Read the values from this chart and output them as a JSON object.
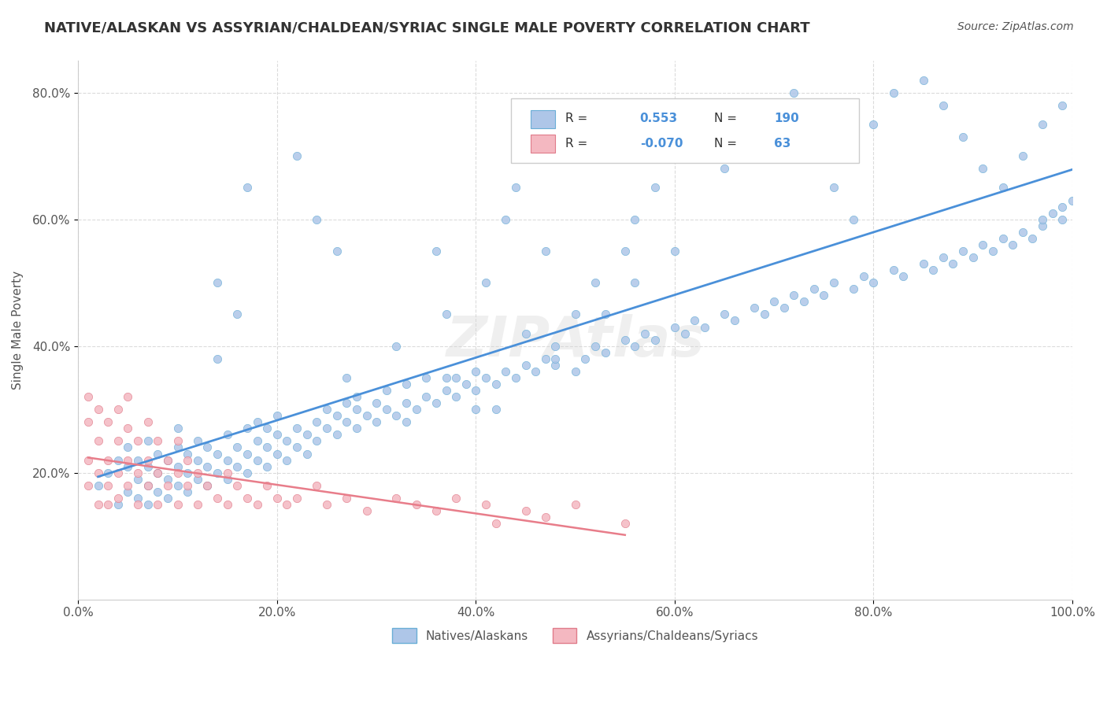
{
  "title": "NATIVE/ALASKAN VS ASSYRIAN/CHALDEAN/SYRIAC SINGLE MALE POVERTY CORRELATION CHART",
  "source": "Source: ZipAtlas.com",
  "xlabel": "",
  "ylabel": "Single Male Poverty",
  "xlim": [
    0.0,
    1.0
  ],
  "ylim": [
    0.0,
    0.85
  ],
  "x_tick_labels": [
    "0.0%",
    "20.0%",
    "40.0%",
    "60.0%",
    "80.0%",
    "100.0%"
  ],
  "x_ticks": [
    0.0,
    0.2,
    0.4,
    0.6,
    0.8,
    1.0
  ],
  "y_tick_labels": [
    "20.0%",
    "40.0%",
    "60.0%",
    "80.0%"
  ],
  "y_ticks": [
    0.2,
    0.4,
    0.6,
    0.8
  ],
  "R_native": 0.553,
  "N_native": 190,
  "R_assyrian": -0.07,
  "N_assyrian": 63,
  "native_color": "#aec6e8",
  "native_edge": "#6aaed6",
  "assyrian_color": "#f4b8c1",
  "assyrian_edge": "#e07b8a",
  "native_line_color": "#4a90d9",
  "assyrian_line_color": "#e87d8a",
  "background_color": "#ffffff",
  "grid_color": "#cccccc",
  "title_color": "#333333",
  "legend_text_color": "#4a90d9",
  "watermark": "ZIPAtlas",
  "native_x": [
    0.02,
    0.03,
    0.04,
    0.04,
    0.05,
    0.05,
    0.05,
    0.06,
    0.06,
    0.06,
    0.07,
    0.07,
    0.07,
    0.07,
    0.08,
    0.08,
    0.08,
    0.09,
    0.09,
    0.09,
    0.1,
    0.1,
    0.1,
    0.1,
    0.11,
    0.11,
    0.11,
    0.12,
    0.12,
    0.12,
    0.13,
    0.13,
    0.13,
    0.14,
    0.14,
    0.15,
    0.15,
    0.15,
    0.16,
    0.16,
    0.17,
    0.17,
    0.17,
    0.18,
    0.18,
    0.18,
    0.19,
    0.19,
    0.19,
    0.2,
    0.2,
    0.2,
    0.21,
    0.21,
    0.22,
    0.22,
    0.23,
    0.23,
    0.24,
    0.24,
    0.25,
    0.25,
    0.26,
    0.26,
    0.27,
    0.27,
    0.28,
    0.28,
    0.29,
    0.3,
    0.3,
    0.31,
    0.31,
    0.32,
    0.33,
    0.33,
    0.34,
    0.35,
    0.35,
    0.36,
    0.37,
    0.38,
    0.38,
    0.39,
    0.4,
    0.4,
    0.41,
    0.42,
    0.43,
    0.44,
    0.45,
    0.46,
    0.47,
    0.48,
    0.5,
    0.51,
    0.52,
    0.53,
    0.55,
    0.56,
    0.57,
    0.58,
    0.6,
    0.61,
    0.62,
    0.63,
    0.65,
    0.66,
    0.68,
    0.69,
    0.7,
    0.71,
    0.72,
    0.73,
    0.74,
    0.75,
    0.76,
    0.78,
    0.79,
    0.8,
    0.82,
    0.83,
    0.85,
    0.86,
    0.87,
    0.88,
    0.89,
    0.9,
    0.91,
    0.92,
    0.93,
    0.94,
    0.95,
    0.96,
    0.97,
    0.97,
    0.98,
    0.99,
    0.99,
    1.0,
    0.14,
    0.16,
    0.17,
    0.22,
    0.24,
    0.26,
    0.27,
    0.32,
    0.36,
    0.37,
    0.41,
    0.42,
    0.43,
    0.44,
    0.47,
    0.48,
    0.5,
    0.52,
    0.55,
    0.56,
    0.58,
    0.6,
    0.62,
    0.65,
    0.68,
    0.7,
    0.72,
    0.74,
    0.76,
    0.78,
    0.8,
    0.82,
    0.85,
    0.87,
    0.89,
    0.91,
    0.93,
    0.95,
    0.97,
    0.99,
    0.14,
    0.28,
    0.33,
    0.37,
    0.4,
    0.45,
    0.48,
    0.53,
    0.56,
    0.6
  ],
  "native_y": [
    0.18,
    0.2,
    0.22,
    0.15,
    0.17,
    0.21,
    0.24,
    0.16,
    0.19,
    0.22,
    0.15,
    0.18,
    0.21,
    0.25,
    0.17,
    0.2,
    0.23,
    0.16,
    0.19,
    0.22,
    0.18,
    0.21,
    0.24,
    0.27,
    0.17,
    0.2,
    0.23,
    0.19,
    0.22,
    0.25,
    0.18,
    0.21,
    0.24,
    0.2,
    0.23,
    0.19,
    0.22,
    0.26,
    0.21,
    0.24,
    0.2,
    0.23,
    0.27,
    0.22,
    0.25,
    0.28,
    0.21,
    0.24,
    0.27,
    0.23,
    0.26,
    0.29,
    0.22,
    0.25,
    0.24,
    0.27,
    0.23,
    0.26,
    0.25,
    0.28,
    0.27,
    0.3,
    0.26,
    0.29,
    0.28,
    0.31,
    0.27,
    0.3,
    0.29,
    0.28,
    0.31,
    0.3,
    0.33,
    0.29,
    0.31,
    0.34,
    0.3,
    0.32,
    0.35,
    0.31,
    0.33,
    0.32,
    0.35,
    0.34,
    0.33,
    0.36,
    0.35,
    0.34,
    0.36,
    0.35,
    0.37,
    0.36,
    0.38,
    0.37,
    0.36,
    0.38,
    0.4,
    0.39,
    0.41,
    0.4,
    0.42,
    0.41,
    0.43,
    0.42,
    0.44,
    0.43,
    0.45,
    0.44,
    0.46,
    0.45,
    0.47,
    0.46,
    0.48,
    0.47,
    0.49,
    0.48,
    0.5,
    0.49,
    0.51,
    0.5,
    0.52,
    0.51,
    0.53,
    0.52,
    0.54,
    0.53,
    0.55,
    0.54,
    0.56,
    0.55,
    0.57,
    0.56,
    0.58,
    0.57,
    0.59,
    0.6,
    0.61,
    0.6,
    0.62,
    0.63,
    0.5,
    0.45,
    0.65,
    0.7,
    0.6,
    0.55,
    0.35,
    0.4,
    0.55,
    0.45,
    0.5,
    0.3,
    0.6,
    0.65,
    0.55,
    0.4,
    0.45,
    0.5,
    0.55,
    0.6,
    0.65,
    0.7,
    0.75,
    0.68,
    0.73,
    0.78,
    0.8,
    0.7,
    0.65,
    0.6,
    0.75,
    0.8,
    0.82,
    0.78,
    0.73,
    0.68,
    0.65,
    0.7,
    0.75,
    0.78,
    0.38,
    0.32,
    0.28,
    0.35,
    0.3,
    0.42,
    0.38,
    0.45,
    0.5,
    0.55
  ],
  "assyrian_x": [
    0.01,
    0.01,
    0.01,
    0.01,
    0.02,
    0.02,
    0.02,
    0.02,
    0.03,
    0.03,
    0.03,
    0.03,
    0.04,
    0.04,
    0.04,
    0.04,
    0.05,
    0.05,
    0.05,
    0.05,
    0.06,
    0.06,
    0.06,
    0.07,
    0.07,
    0.07,
    0.08,
    0.08,
    0.08,
    0.09,
    0.09,
    0.1,
    0.1,
    0.1,
    0.11,
    0.11,
    0.12,
    0.12,
    0.13,
    0.14,
    0.15,
    0.15,
    0.16,
    0.17,
    0.18,
    0.19,
    0.2,
    0.21,
    0.22,
    0.24,
    0.25,
    0.27,
    0.29,
    0.32,
    0.34,
    0.36,
    0.38,
    0.41,
    0.42,
    0.45,
    0.47,
    0.5,
    0.55
  ],
  "assyrian_y": [
    0.28,
    0.32,
    0.18,
    0.22,
    0.15,
    0.25,
    0.3,
    0.2,
    0.18,
    0.28,
    0.22,
    0.15,
    0.2,
    0.25,
    0.3,
    0.16,
    0.22,
    0.27,
    0.18,
    0.32,
    0.2,
    0.15,
    0.25,
    0.22,
    0.18,
    0.28,
    0.2,
    0.15,
    0.25,
    0.22,
    0.18,
    0.2,
    0.15,
    0.25,
    0.22,
    0.18,
    0.2,
    0.15,
    0.18,
    0.16,
    0.15,
    0.2,
    0.18,
    0.16,
    0.15,
    0.18,
    0.16,
    0.15,
    0.16,
    0.18,
    0.15,
    0.16,
    0.14,
    0.16,
    0.15,
    0.14,
    0.16,
    0.15,
    0.12,
    0.14,
    0.13,
    0.15,
    0.12
  ]
}
